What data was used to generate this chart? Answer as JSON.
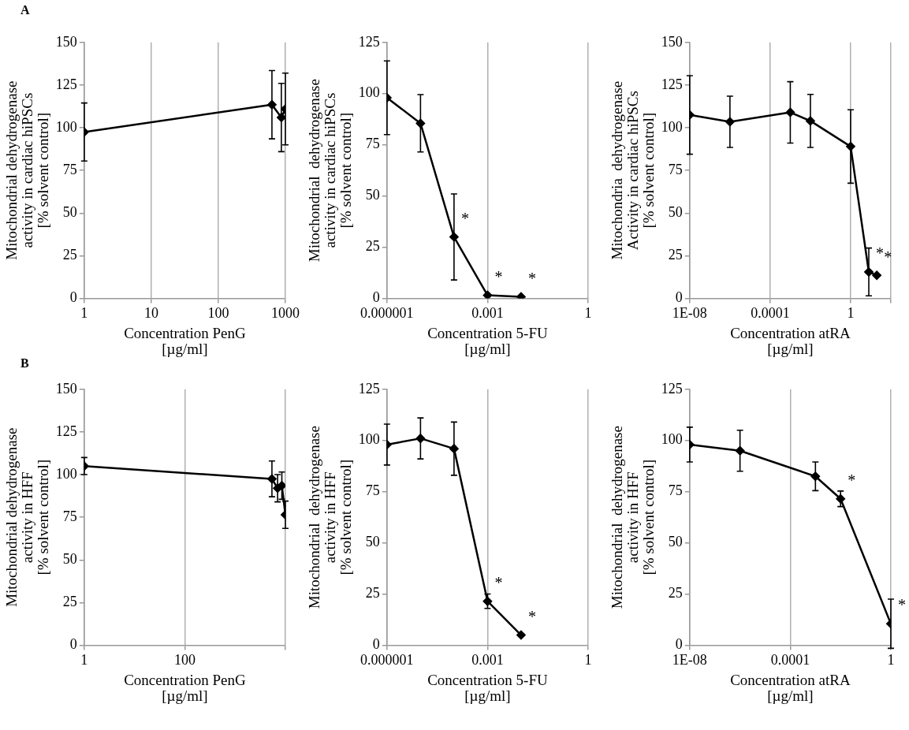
{
  "chart_data": [
    {
      "type": "line",
      "annotations": [
        "A"
      ],
      "xlabel": "Concentration PenG\n[µg/ml]",
      "ylabel": "Mitochondrial dehydrogenase\nactivity in cardiac hiPSCs\n[% solvent control]",
      "log": "x",
      "grid": "x",
      "marker": "diamond",
      "line_style": "solid",
      "xlim": [
        1,
        1000
      ],
      "xticks": [
        1,
        10,
        100,
        1000
      ],
      "ylim": [
        0,
        150
      ],
      "yticks": [
        0,
        25,
        50,
        75,
        100,
        125,
        150
      ],
      "series": [
        {
          "color": "#000000",
          "x": [
            1,
            630,
            800,
            870,
            1000
          ],
          "values": [
            97.5,
            113.5,
            null,
            106,
            111
          ],
          "errors": [
            17,
            20,
            null,
            20,
            21
          ]
        }
      ]
    },
    {
      "type": "line",
      "xlabel": "Concentration 5-FU\n[µg/ml]",
      "ylabel": "Mitochondrial  dehydrogenase\nactivity in cardiac hiPSCs\n[% solvent control]",
      "log": "x",
      "grid": "x",
      "marker": "diamond",
      "line_style": "solid",
      "xlim": [
        1e-06,
        1
      ],
      "xticks": [
        {
          "value": 1e-06,
          "label": "0.000001"
        },
        {
          "value": 0.001,
          "label": "0.001"
        },
        1
      ],
      "ylim": [
        0,
        125
      ],
      "yticks": [
        0,
        25,
        50,
        75,
        100,
        125
      ],
      "annotations": [
        {
          "text": "*",
          "x": 0.0001,
          "y": 30
        },
        {
          "text": "*",
          "x": 0.001,
          "y": 1.5
        },
        {
          "text": "*",
          "x": 0.01,
          "y": 0.8
        }
      ],
      "series": [
        {
          "color": "#000000",
          "x": [
            1e-06,
            1e-05,
            0.0001,
            0.001,
            0.01
          ],
          "values": [
            98,
            85.5,
            30,
            1.5,
            0.8
          ],
          "errors": [
            18,
            14,
            21,
            null,
            null
          ]
        }
      ]
    },
    {
      "type": "line",
      "xlabel": "Concentration atRA\n[µg/ml]",
      "ylabel": "Mitochondria  dehydrogenase\nActivity in cardiac hiPSCs\n[% solvent control]",
      "log": "x",
      "grid": "x",
      "marker": "diamond",
      "line_style": "solid",
      "xlim": [
        1e-08,
        100
      ],
      "xticks": [
        {
          "value": 1e-08,
          "label": "1E-08"
        },
        {
          "value": 0.0001,
          "label": "0.0001"
        },
        1,
        {
          "value": 100,
          "label": null
        }
      ],
      "ylim": [
        0,
        150
      ],
      "yticks": [
        0,
        25,
        50,
        75,
        100,
        125,
        150
      ],
      "annotations": [
        {
          "text": "*",
          "x": 8,
          "y": 15.5
        },
        {
          "text": "*",
          "x": 20,
          "y": 13.5
        }
      ],
      "series": [
        {
          "color": "#000000",
          "x": [
            1e-08,
            1e-06,
            0.001,
            0.01,
            1,
            8,
            20
          ],
          "values": [
            107.5,
            103.5,
            109,
            104,
            89,
            15.5,
            13.5
          ],
          "errors": [
            23,
            15,
            18,
            15.5,
            21.5,
            14,
            null
          ]
        }
      ]
    },
    {
      "type": "line",
      "annotations": [
        "B"
      ],
      "xlabel": "Concentration PenG\n[µg/ml]",
      "ylabel": "Mitochondrial dehydrogenase\nactivity in HFF\n[% solvent control]",
      "log": "x",
      "grid": "x",
      "marker": "diamond",
      "line_style": "solid",
      "xlim": [
        1,
        10000
      ],
      "xticks": [
        1,
        100,
        {
          "value": 10000,
          "label": null
        }
      ],
      "ylim": [
        0,
        150
      ],
      "yticks": [
        0,
        25,
        50,
        75,
        100,
        125,
        150
      ],
      "series": [
        {
          "color": "#000000",
          "x": [
            1,
            5400,
            7000,
            8500,
            10000
          ],
          "values": [
            105,
            97.5,
            92,
            93.5,
            76.5
          ],
          "errors": [
            5,
            10.5,
            8,
            8,
            8
          ]
        }
      ]
    },
    {
      "type": "line",
      "xlabel": "Concentration 5-FU\n[µg/ml]",
      "ylabel": "Mitochondrial  dehydrogenase\nactivity in HFF\n[% solvent control]",
      "log": "x",
      "grid": "x",
      "marker": "diamond",
      "line_style": "solid",
      "xlim": [
        1e-06,
        1
      ],
      "xticks": [
        {
          "value": 1e-06,
          "label": "0.000001"
        },
        {
          "value": 0.001,
          "label": "0.001"
        },
        1
      ],
      "ylim": [
        0,
        125
      ],
      "yticks": [
        0,
        25,
        50,
        75,
        100,
        125
      ],
      "annotations": [
        {
          "text": "*",
          "x": 0.001,
          "y": 21.5
        },
        {
          "text": "*",
          "x": 0.01,
          "y": 5
        }
      ],
      "series": [
        {
          "color": "#000000",
          "x": [
            1e-06,
            1e-05,
            0.0001,
            0.001,
            0.01
          ],
          "values": [
            98,
            101,
            96,
            21.5,
            5
          ],
          "errors": [
            10,
            10,
            13,
            3.5,
            null
          ]
        }
      ]
    },
    {
      "type": "line",
      "xlabel": "Concentration atRA\n[µg/ml]",
      "ylabel": "Mitochondrial  dehydrogenase\nactivity in HFF\n[% solvent control]",
      "log": "x",
      "grid": "x",
      "marker": "diamond",
      "line_style": "solid",
      "xlim": [
        1e-08,
        1
      ],
      "xticks": [
        {
          "value": 1e-08,
          "label": "1E-08"
        },
        {
          "value": 0.0001,
          "label": "0.0001"
        },
        1
      ],
      "ylim": [
        0,
        125
      ],
      "yticks": [
        0,
        25,
        50,
        75,
        100,
        125
      ],
      "annotations": [
        {
          "text": "*",
          "x": 0.01,
          "y": 71.5
        },
        {
          "text": "*",
          "x": 1,
          "y": 10.5
        }
      ],
      "series": [
        {
          "color": "#000000",
          "x": [
            1e-08,
            1e-06,
            0.001,
            0.01,
            1
          ],
          "values": [
            98,
            95,
            82.5,
            71.5,
            10.5
          ],
          "errors": [
            8.5,
            10,
            7,
            3.8,
            12
          ]
        }
      ]
    }
  ]
}
